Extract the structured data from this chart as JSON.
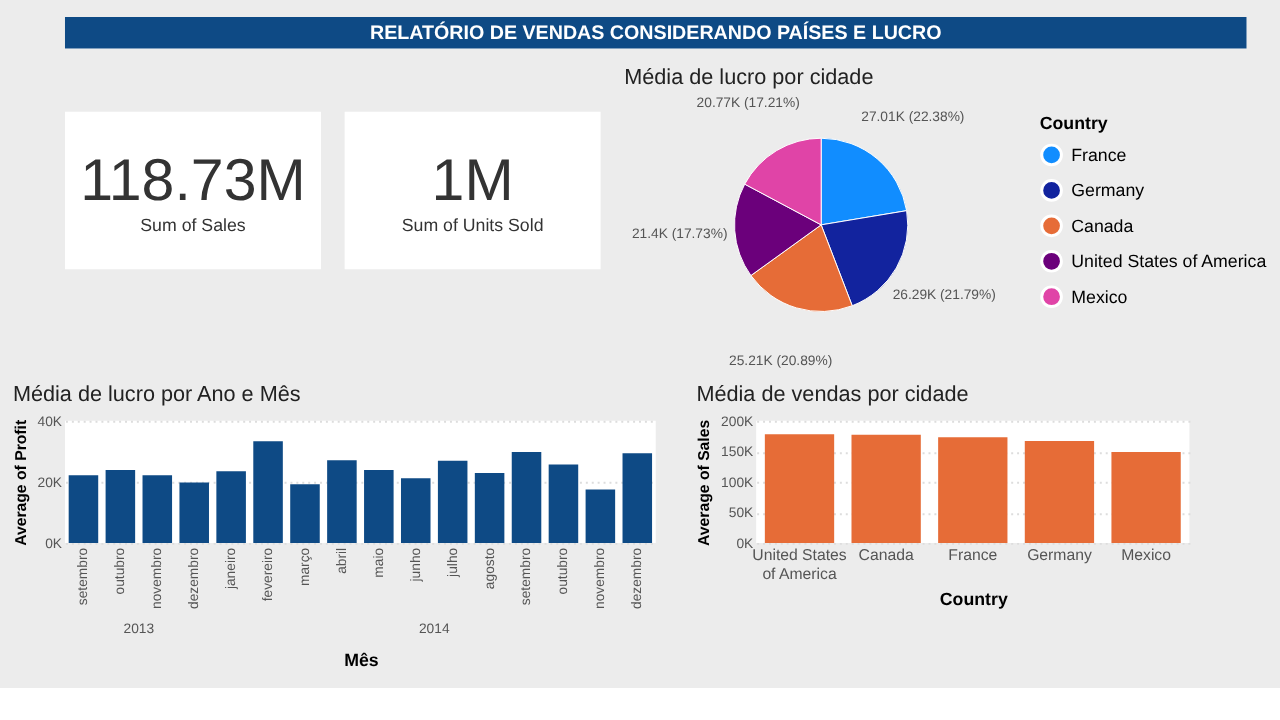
{
  "chart_data": [
    {
      "type": "other",
      "title": "RELATÓRIO DE VENDAS CONSIDERANDO PAÍSES  E LUCRO"
    },
    {
      "type": "other",
      "annotations": [
        "118.73M",
        "Sum of  Sales"
      ]
    },
    {
      "type": "other",
      "annotations": [
        "1M",
        "Sum of Units Sold"
      ]
    },
    {
      "type": "pie",
      "title": "Média de lucro por cidade",
      "categories": [
        "France",
        "Germany",
        "Canada",
        "United States of America",
        "Mexico"
      ],
      "values": [
        27010,
        26290,
        25210,
        21400,
        20770
      ],
      "colors": [
        "#118dff",
        "#12239e",
        "#e66c37",
        "#6b007b",
        "#e044a7"
      ],
      "value_labels": [
        "27.01K (22.38%)",
        "26.29K (21.79%)",
        "25.21K (20.89%)",
        "21.4K (17.73%)",
        "20.77K (17.21%)"
      ],
      "legend_title": "Country",
      "legend": "right"
    },
    {
      "type": "bar",
      "title": "Média de lucro por Ano e Mês",
      "xlabel": "Mês",
      "ylabel": "Average of Profit",
      "categories": [
        "setembro",
        "outubro",
        "novembro",
        "dezembro",
        "janeiro",
        "fevereiro",
        "março",
        "abril",
        "maio",
        "junho",
        "julho",
        "agosto",
        "setembro",
        "outubro",
        "novembro",
        "dezembro"
      ],
      "series": [
        {
          "color": "#0e4a85",
          "values": [
            22200,
            23900,
            22200,
            19800,
            23500,
            33300,
            19200,
            27100,
            23900,
            21200,
            26900,
            22900,
            29800,
            25700,
            17500,
            29400
          ]
        }
      ],
      "ylim": [
        0,
        40000
      ],
      "yticks": [
        {
          "value": 0,
          "label": "0K"
        },
        {
          "value": 20000,
          "label": "20K"
        },
        {
          "value": 40000,
          "label": "40K"
        }
      ],
      "grid": "y",
      "annotations": [
        "2013",
        "2014"
      ]
    },
    {
      "type": "bar",
      "title": "Média de vendas por cidade",
      "xlabel": "Country",
      "ylabel": "Average of Sales",
      "categories": [
        "United States of America",
        "Canada",
        "France",
        "Germany",
        "Mexico"
      ],
      "series": [
        {
          "color": "#e66c37",
          "values": [
            178000,
            177000,
            173000,
            167000,
            149000
          ]
        }
      ],
      "ylim": [
        0,
        200000
      ],
      "yticks": [
        {
          "value": 0,
          "label": "0K"
        },
        {
          "value": 50000,
          "label": "50K"
        },
        {
          "value": 100000,
          "label": "100K"
        },
        {
          "value": 150000,
          "label": "150K"
        },
        {
          "value": 200000,
          "label": "200K"
        }
      ],
      "grid": "y"
    }
  ]
}
